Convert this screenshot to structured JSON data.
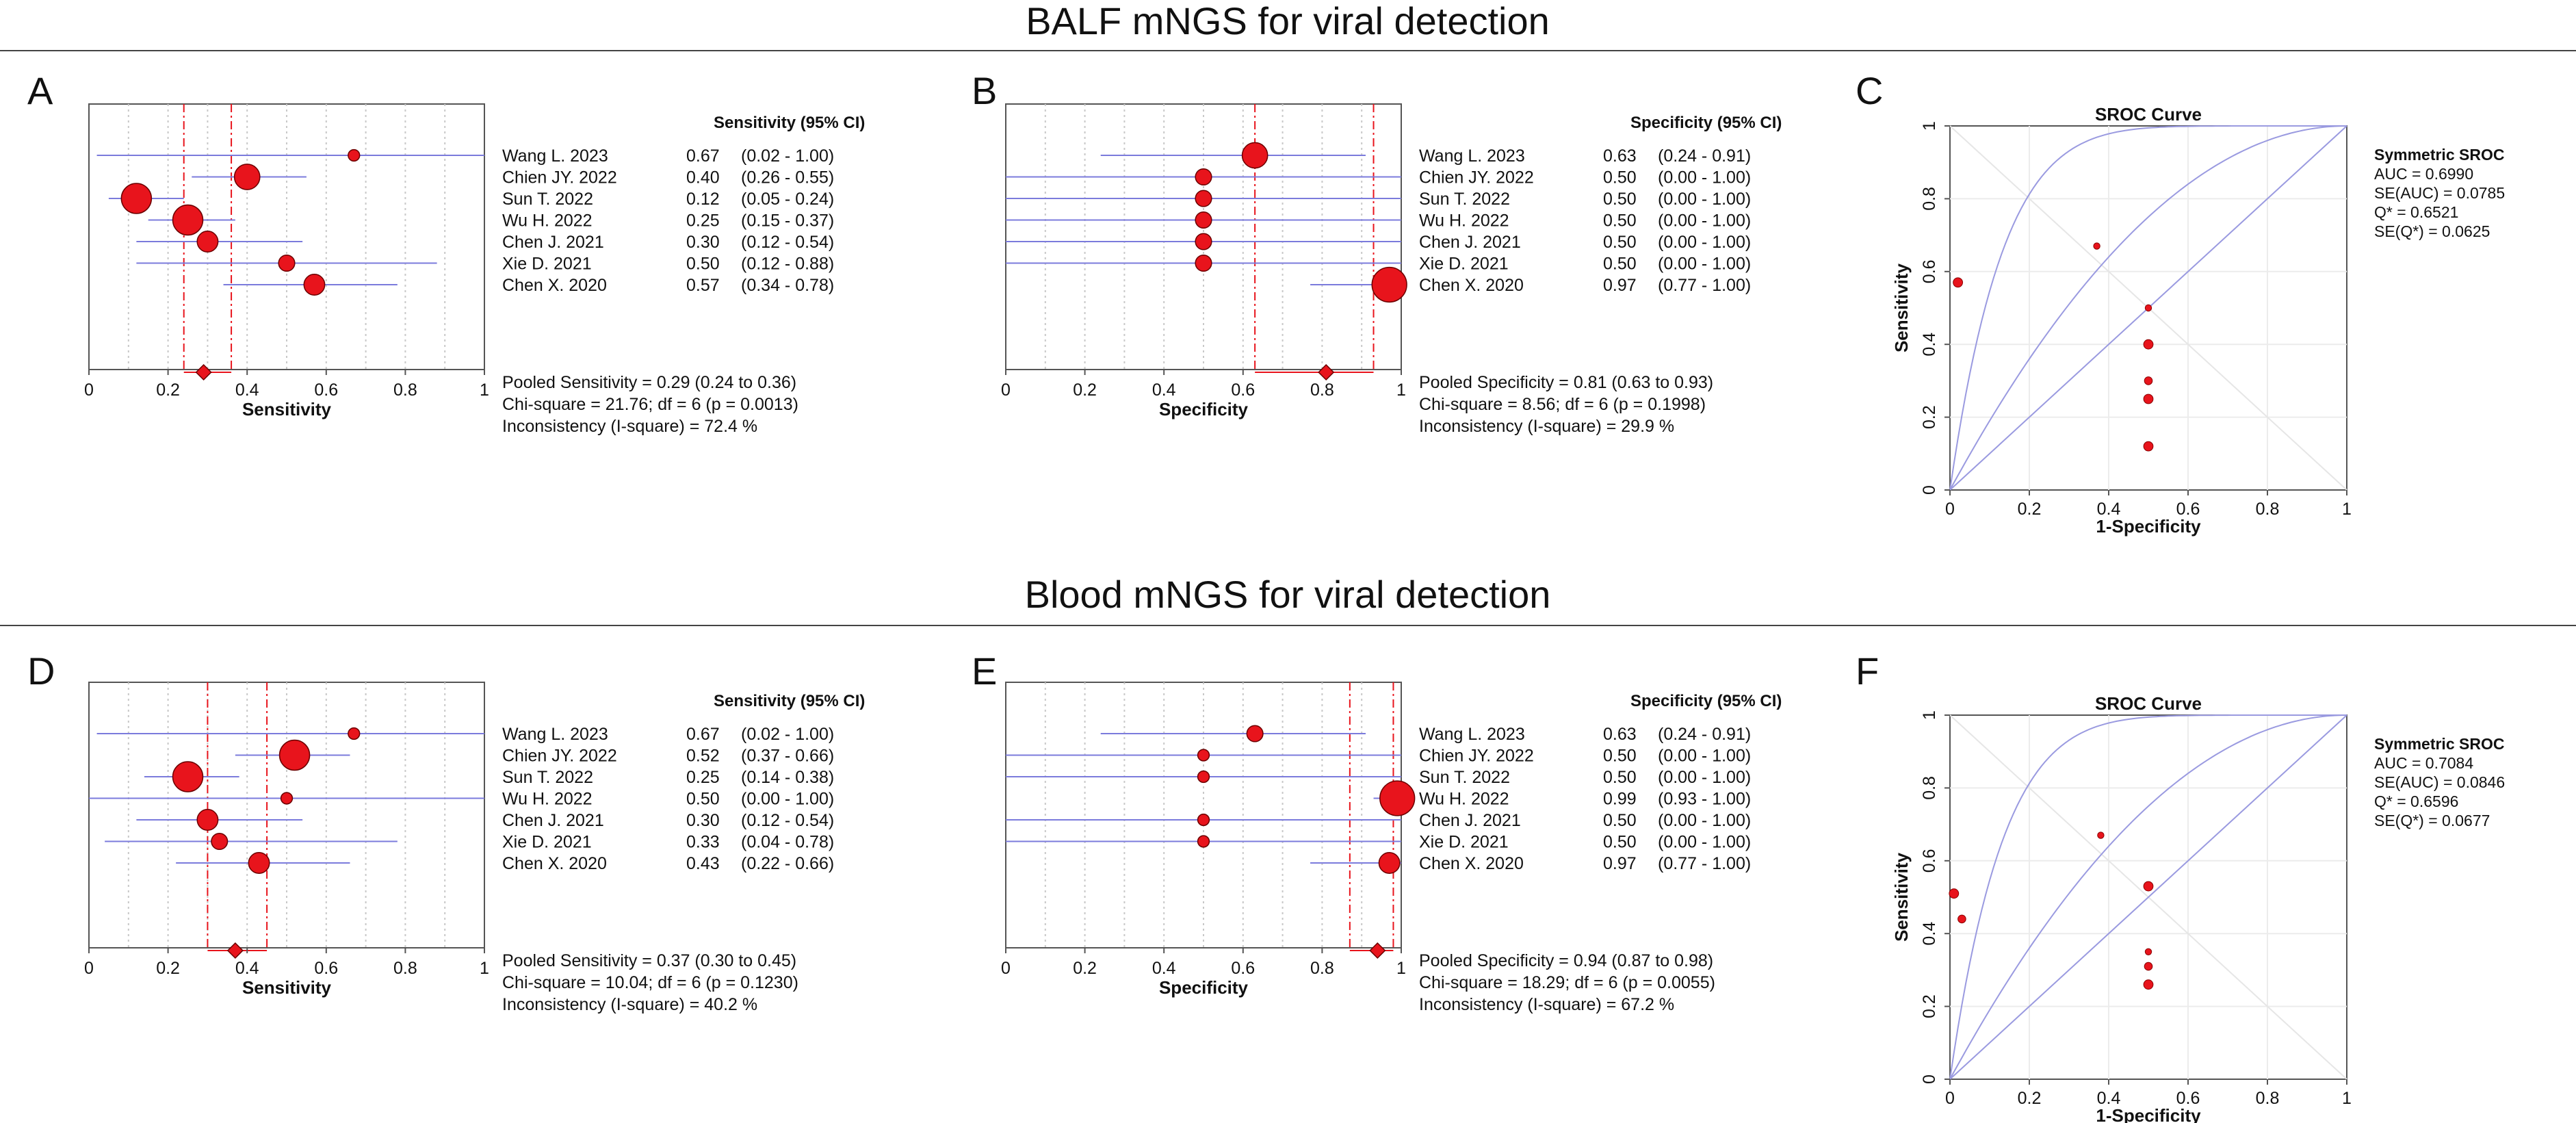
{
  "sections": [
    {
      "title": "BALF mNGS for viral detection"
    },
    {
      "title": "Blood mNGS for viral detection"
    }
  ],
  "colors": {
    "marker": "#e8141c",
    "ci_line": "#7b7bdc",
    "pooled_line": "#e8141c",
    "grid": "#c8c8c8",
    "roc": "#9a9ae0",
    "axis": "#333333"
  },
  "chart_data": [
    {
      "panel": "A",
      "type": "forest",
      "metric": "Sensitivity",
      "header": "Sensitivity (95% CI)",
      "xlabel": "Sensitivity",
      "xlim": [
        0,
        1
      ],
      "xticks": [
        "0",
        "0.2",
        "0.4",
        "0.6",
        "0.8",
        "1"
      ],
      "studies": [
        {
          "name": "Wang L. 2023",
          "est": 0.67,
          "lo": 0.02,
          "hi": 1.0,
          "size": 1,
          "value_text": "0.67",
          "ci_text": "(0.02 - 1.00)"
        },
        {
          "name": "Chien JY. 2022",
          "est": 0.4,
          "lo": 0.26,
          "hi": 0.55,
          "size": 4,
          "value_text": "0.40",
          "ci_text": "(0.26 - 0.55)"
        },
        {
          "name": "Sun T. 2022",
          "est": 0.12,
          "lo": 0.05,
          "hi": 0.24,
          "size": 5,
          "value_text": "0.12",
          "ci_text": "(0.05 - 0.24)"
        },
        {
          "name": "Wu H. 2022",
          "est": 0.25,
          "lo": 0.15,
          "hi": 0.37,
          "size": 5,
          "value_text": "0.25",
          "ci_text": "(0.15 - 0.37)"
        },
        {
          "name": "Chen J. 2021",
          "est": 0.3,
          "lo": 0.12,
          "hi": 0.54,
          "size": 3,
          "value_text": "0.30",
          "ci_text": "(0.12 - 0.54)"
        },
        {
          "name": "Xie D. 2021",
          "est": 0.5,
          "lo": 0.12,
          "hi": 0.88,
          "size": 2,
          "value_text": "0.50",
          "ci_text": "(0.12 - 0.88)"
        },
        {
          "name": "Chen X. 2020",
          "est": 0.57,
          "lo": 0.34,
          "hi": 0.78,
          "size": 3,
          "value_text": "0.57",
          "ci_text": "(0.34 - 0.78)"
        }
      ],
      "pooled": {
        "est": 0.29,
        "lo": 0.24,
        "hi": 0.36
      },
      "stats": [
        "Pooled Sensitivity = 0.29 (0.24 to 0.36)",
        "Chi-square = 21.76; df =  6  (p = 0.0013)",
        "Inconsistency (I-square) = 72.4 %"
      ]
    },
    {
      "panel": "B",
      "type": "forest",
      "metric": "Specificity",
      "header": "Specificity (95% CI)",
      "xlabel": "Specificity",
      "xlim": [
        0,
        1
      ],
      "xticks": [
        "0",
        "0.2",
        "0.4",
        "0.6",
        "0.8",
        "1"
      ],
      "studies": [
        {
          "name": "Wang L. 2023",
          "est": 0.63,
          "lo": 0.24,
          "hi": 0.91,
          "size": 4,
          "value_text": "0.63",
          "ci_text": "(0.24 - 0.91)"
        },
        {
          "name": "Chien JY. 2022",
          "est": 0.5,
          "lo": 0.0,
          "hi": 1.0,
          "size": 2,
          "value_text": "0.50",
          "ci_text": "(0.00 - 1.00)"
        },
        {
          "name": "Sun T. 2022",
          "est": 0.5,
          "lo": 0.0,
          "hi": 1.0,
          "size": 2,
          "value_text": "0.50",
          "ci_text": "(0.00 - 1.00)"
        },
        {
          "name": "Wu H. 2022",
          "est": 0.5,
          "lo": 0.0,
          "hi": 1.0,
          "size": 2,
          "value_text": "0.50",
          "ci_text": "(0.00 - 1.00)"
        },
        {
          "name": "Chen J. 2021",
          "est": 0.5,
          "lo": 0.0,
          "hi": 1.0,
          "size": 2,
          "value_text": "0.50",
          "ci_text": "(0.00 - 1.00)"
        },
        {
          "name": "Xie D. 2021",
          "est": 0.5,
          "lo": 0.0,
          "hi": 1.0,
          "size": 2,
          "value_text": "0.50",
          "ci_text": "(0.00 - 1.00)"
        },
        {
          "name": "Chen X. 2020",
          "est": 0.97,
          "lo": 0.77,
          "hi": 1.0,
          "size": 6,
          "value_text": "0.97",
          "ci_text": "(0.77 - 1.00)"
        }
      ],
      "pooled": {
        "est": 0.81,
        "lo": 0.63,
        "hi": 0.93
      },
      "stats": [
        "Pooled Specificity = 0.81 (0.63 to 0.93)",
        "Chi-square = 8.56; df =  6  (p = 0.1998)",
        "Inconsistency (I-square) = 29.9 %"
      ]
    },
    {
      "panel": "C",
      "type": "sroc",
      "title": "SROC Curve",
      "xlabel": "1-Specificity",
      "ylabel": "Sensitivity",
      "xlim": [
        0,
        1
      ],
      "ylim": [
        0,
        1
      ],
      "xticks": [
        "0",
        "0.2",
        "0.4",
        "0.6",
        "0.8",
        "1"
      ],
      "yticks": [
        "0",
        "0.2",
        "0.4",
        "0.6",
        "0.8",
        "1"
      ],
      "points": [
        {
          "x": 0.02,
          "y": 0.57,
          "size": 2
        },
        {
          "x": 0.37,
          "y": 0.67,
          "size": 1
        },
        {
          "x": 0.5,
          "y": 0.5,
          "size": 1
        },
        {
          "x": 0.5,
          "y": 0.4,
          "size": 2
        },
        {
          "x": 0.5,
          "y": 0.3,
          "size": 1.5
        },
        {
          "x": 0.5,
          "y": 0.25,
          "size": 2
        },
        {
          "x": 0.5,
          "y": 0.12,
          "size": 2
        }
      ],
      "sroc_b": 0.6521,
      "legend_title": "Symmetric SROC",
      "legend": [
        "AUC = 0.6990",
        "SE(AUC) = 0.0785",
        "Q* = 0.6521",
        "SE(Q*) = 0.0625"
      ]
    },
    {
      "panel": "D",
      "type": "forest",
      "metric": "Sensitivity",
      "header": "Sensitivity (95% CI)",
      "xlabel": "Sensitivity",
      "xlim": [
        0,
        1
      ],
      "xticks": [
        "0",
        "0.2",
        "0.4",
        "0.6",
        "0.8",
        "1"
      ],
      "studies": [
        {
          "name": "Wang L. 2023",
          "est": 0.67,
          "lo": 0.02,
          "hi": 1.0,
          "size": 1,
          "value_text": "0.67",
          "ci_text": "(0.02 - 1.00)"
        },
        {
          "name": "Chien JY. 2022",
          "est": 0.52,
          "lo": 0.37,
          "hi": 0.66,
          "size": 5,
          "value_text": "0.52",
          "ci_text": "(0.37 - 0.66)"
        },
        {
          "name": "Sun T. 2022",
          "est": 0.25,
          "lo": 0.14,
          "hi": 0.38,
          "size": 5,
          "value_text": "0.25",
          "ci_text": "(0.14 - 0.38)"
        },
        {
          "name": "Wu H. 2022",
          "est": 0.5,
          "lo": 0.0,
          "hi": 1.0,
          "size": 1,
          "value_text": "0.50",
          "ci_text": "(0.00 - 1.00)"
        },
        {
          "name": "Chen J. 2021",
          "est": 0.3,
          "lo": 0.12,
          "hi": 0.54,
          "size": 3,
          "value_text": "0.30",
          "ci_text": "(0.12 - 0.54)"
        },
        {
          "name": "Xie D. 2021",
          "est": 0.33,
          "lo": 0.04,
          "hi": 0.78,
          "size": 2,
          "value_text": "0.33",
          "ci_text": "(0.04 - 0.78)"
        },
        {
          "name": "Chen X. 2020",
          "est": 0.43,
          "lo": 0.22,
          "hi": 0.66,
          "size": 3,
          "value_text": "0.43",
          "ci_text": "(0.22 - 0.66)"
        }
      ],
      "pooled": {
        "est": 0.37,
        "lo": 0.3,
        "hi": 0.45
      },
      "stats": [
        "Pooled Sensitivity = 0.37 (0.30 to 0.45)",
        "Chi-square = 10.04; df =  6  (p = 0.1230)",
        "Inconsistency (I-square) = 40.2 %"
      ]
    },
    {
      "panel": "E",
      "type": "forest",
      "metric": "Specificity",
      "header": "Specificity (95% CI)",
      "xlabel": "Specificity",
      "xlim": [
        0,
        1
      ],
      "xticks": [
        "0",
        "0.2",
        "0.4",
        "0.6",
        "0.8",
        "1"
      ],
      "studies": [
        {
          "name": "Wang L. 2023",
          "est": 0.63,
          "lo": 0.24,
          "hi": 0.91,
          "size": 2,
          "value_text": "0.63",
          "ci_text": "(0.24 - 0.91)"
        },
        {
          "name": "Chien JY. 2022",
          "est": 0.5,
          "lo": 0.0,
          "hi": 1.0,
          "size": 1,
          "value_text": "0.50",
          "ci_text": "(0.00 - 1.00)"
        },
        {
          "name": "Sun T. 2022",
          "est": 0.5,
          "lo": 0.0,
          "hi": 1.0,
          "size": 1,
          "value_text": "0.50",
          "ci_text": "(0.00 - 1.00)"
        },
        {
          "name": "Wu H. 2022",
          "est": 0.99,
          "lo": 0.93,
          "hi": 1.0,
          "size": 6,
          "value_text": "0.99",
          "ci_text": "(0.93 - 1.00)"
        },
        {
          "name": "Chen J. 2021",
          "est": 0.5,
          "lo": 0.0,
          "hi": 1.0,
          "size": 1,
          "value_text": "0.50",
          "ci_text": "(0.00 - 1.00)"
        },
        {
          "name": "Xie D. 2021",
          "est": 0.5,
          "lo": 0.0,
          "hi": 1.0,
          "size": 1,
          "value_text": "0.50",
          "ci_text": "(0.00 - 1.00)"
        },
        {
          "name": "Chen X. 2020",
          "est": 0.97,
          "lo": 0.77,
          "hi": 1.0,
          "size": 3,
          "value_text": "0.97",
          "ci_text": "(0.77 - 1.00)"
        }
      ],
      "pooled": {
        "est": 0.94,
        "lo": 0.87,
        "hi": 0.98
      },
      "stats": [
        "Pooled Specificity = 0.94 (0.87 to 0.98)",
        "Chi-square = 18.29; df =  6  (p = 0.0055)",
        "Inconsistency (I-square) = 67.2 %"
      ]
    },
    {
      "panel": "F",
      "type": "sroc",
      "title": "SROC Curve",
      "xlabel": "1-Specificity",
      "ylabel": "Sensitivity",
      "xlim": [
        0,
        1
      ],
      "ylim": [
        0,
        1
      ],
      "xticks": [
        "0",
        "0.2",
        "0.4",
        "0.6",
        "0.8",
        "1"
      ],
      "yticks": [
        "0",
        "0.2",
        "0.4",
        "0.6",
        "0.8",
        "1"
      ],
      "points": [
        {
          "x": 0.01,
          "y": 0.51,
          "size": 2
        },
        {
          "x": 0.03,
          "y": 0.44,
          "size": 1.5
        },
        {
          "x": 0.38,
          "y": 0.67,
          "size": 1
        },
        {
          "x": 0.5,
          "y": 0.53,
          "size": 2
        },
        {
          "x": 0.5,
          "y": 0.35,
          "size": 1
        },
        {
          "x": 0.5,
          "y": 0.31,
          "size": 1.5
        },
        {
          "x": 0.5,
          "y": 0.26,
          "size": 2
        }
      ],
      "sroc_b": 0.6596,
      "legend_title": "Symmetric SROC",
      "legend": [
        "AUC = 0.7084",
        "SE(AUC) = 0.0846",
        "Q* = 0.6596",
        "SE(Q*) = 0.0677"
      ]
    }
  ]
}
